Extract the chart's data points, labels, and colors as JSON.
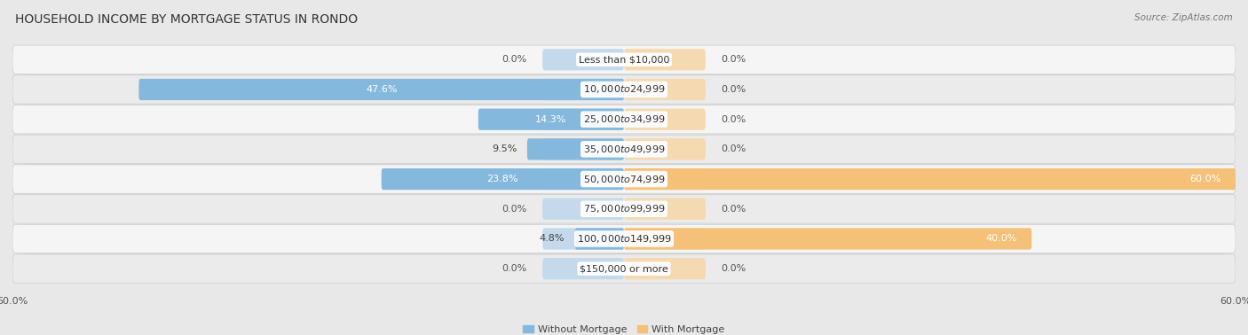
{
  "title": "HOUSEHOLD INCOME BY MORTGAGE STATUS IN RONDO",
  "source": "Source: ZipAtlas.com",
  "categories": [
    "Less than $10,000",
    "$10,000 to $24,999",
    "$25,000 to $34,999",
    "$35,000 to $49,999",
    "$50,000 to $74,999",
    "$75,000 to $99,999",
    "$100,000 to $149,999",
    "$150,000 or more"
  ],
  "without_mortgage": [
    0.0,
    47.6,
    14.3,
    9.5,
    23.8,
    0.0,
    4.8,
    0.0
  ],
  "with_mortgage": [
    0.0,
    0.0,
    0.0,
    0.0,
    60.0,
    0.0,
    40.0,
    0.0
  ],
  "without_mortgage_color": "#85b8dd",
  "with_mortgage_color": "#f5c078",
  "without_mortgage_color_light": "#c5d9ec",
  "with_mortgage_color_light": "#f5d9b0",
  "axis_max": 60.0,
  "bg_color": "#e8e8e8",
  "row_color_odd": "#f5f5f5",
  "row_color_even": "#ebebeb",
  "legend_without": "Without Mortgage",
  "legend_with": "With Mortgage",
  "title_fontsize": 10,
  "source_fontsize": 7.5,
  "label_fontsize": 8,
  "category_fontsize": 8,
  "axis_label_fontsize": 8
}
